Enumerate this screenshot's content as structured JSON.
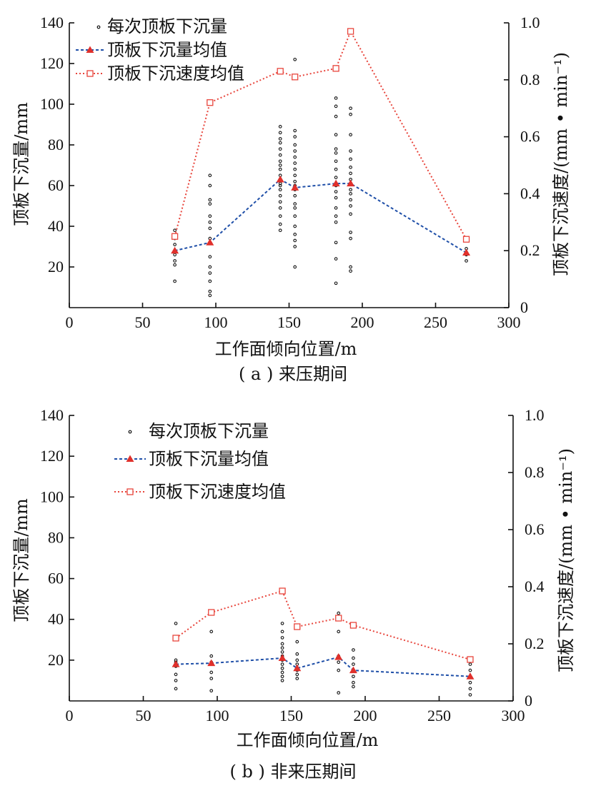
{
  "colors": {
    "axis": "#111111",
    "scatter": "#111111",
    "mean_line": "#1f4fa8",
    "mean_marker": "#e0302b",
    "speed_line": "#e8453c",
    "speed_marker": "#e8453c"
  },
  "legend": {
    "scatter": "每次顶板下沉量",
    "mean": "顶板下沉量均值",
    "speed": "顶板下沉速度均值"
  },
  "chart_data": [
    {
      "type": "scatter",
      "caption": "( a ) 来压期间",
      "xlabel": "工作面倾向位置/m",
      "ylabel": "顶板下沉量/mm",
      "ylabel2": "顶板下沉速度/(mm • min⁻¹)",
      "xlim": [
        0,
        300
      ],
      "xticks": [
        0,
        50,
        100,
        150,
        200,
        250,
        300
      ],
      "ylim": [
        0,
        140
      ],
      "yticks": [
        20,
        40,
        60,
        80,
        100,
        120,
        140
      ],
      "y2lim": [
        0,
        1.0
      ],
      "y2ticks": [
        0,
        0.2,
        0.4,
        0.6,
        0.8,
        1.0
      ],
      "y2tick_labels": [
        "0",
        "0.2",
        "0.4",
        "0.6",
        "0.8",
        "1.0"
      ],
      "legend_position": "top-left",
      "grid": false,
      "scatter_points": [
        {
          "x": 72,
          "y": [
            13,
            21,
            23,
            26,
            28,
            31,
            34,
            38
          ]
        },
        {
          "x": 96,
          "y": [
            6,
            8,
            13,
            17,
            20,
            25,
            32,
            34,
            39,
            42,
            45,
            51,
            53,
            60,
            65
          ]
        },
        {
          "x": 144,
          "y": [
            38,
            41,
            45,
            49,
            52,
            55,
            58,
            60,
            61,
            63,
            65,
            68,
            70,
            72,
            75,
            78,
            81,
            83,
            86,
            89
          ]
        },
        {
          "x": 154,
          "y": [
            20,
            30,
            33,
            36,
            40,
            45,
            49,
            51,
            55,
            58,
            60,
            62,
            65,
            68,
            71,
            74,
            77,
            80,
            84,
            87,
            122
          ]
        },
        {
          "x": 182,
          "y": [
            12,
            24,
            32,
            42,
            45,
            49,
            54,
            57,
            60,
            64,
            68,
            72,
            76,
            78,
            85,
            94,
            99,
            103
          ]
        },
        {
          "x": 192,
          "y": [
            18,
            20,
            34,
            37,
            46,
            50,
            53,
            56,
            58,
            61,
            63,
            66,
            69,
            73,
            77,
            85,
            95,
            98
          ]
        },
        {
          "x": 271,
          "y": [
            23,
            26,
            29
          ]
        }
      ],
      "series": [
        {
          "name": "顶板下沉量均值",
          "axis": "left",
          "x": [
            72,
            96,
            144,
            154,
            182,
            192,
            271
          ],
          "y": [
            28,
            32,
            63,
            59,
            61,
            61,
            27
          ]
        },
        {
          "name": "顶板下沉速度均值",
          "axis": "right",
          "x": [
            72,
            96,
            144,
            154,
            182,
            192,
            271
          ],
          "y": [
            0.25,
            0.72,
            0.83,
            0.81,
            0.84,
            0.97,
            0.24
          ]
        }
      ]
    },
    {
      "type": "scatter",
      "caption": "( b ) 非来压期间",
      "xlabel": "工作面倾向位置/m",
      "ylabel": "顶板下沉量/mm",
      "ylabel2": "顶板下沉速度/(mm • min⁻¹)",
      "xlim": [
        0,
        300
      ],
      "xticks": [
        0,
        50,
        100,
        150,
        200,
        250,
        300
      ],
      "ylim": [
        0,
        140
      ],
      "yticks": [
        20,
        40,
        60,
        80,
        100,
        120,
        140
      ],
      "y2lim": [
        0,
        1.0
      ],
      "y2ticks": [
        0,
        0.2,
        0.4,
        0.6,
        0.8,
        1.0
      ],
      "y2tick_labels": [
        "0",
        "0.2",
        "0.4",
        "0.6",
        "0.8",
        "1.0"
      ],
      "legend_position": "top-left",
      "grid": false,
      "scatter_points": [
        {
          "x": 72,
          "y": [
            6,
            10,
            13,
            17,
            19,
            20,
            38
          ]
        },
        {
          "x": 96,
          "y": [
            5,
            11,
            14,
            19,
            22,
            34
          ]
        },
        {
          "x": 144,
          "y": [
            10,
            12,
            14,
            16,
            18,
            20,
            22,
            24,
            26,
            28,
            31,
            34,
            38
          ]
        },
        {
          "x": 154,
          "y": [
            11,
            13,
            15,
            18,
            20,
            23,
            29
          ]
        },
        {
          "x": 182,
          "y": [
            4,
            15,
            19,
            22,
            34,
            40,
            43
          ]
        },
        {
          "x": 192,
          "y": [
            7,
            9,
            12,
            15,
            18,
            21,
            25
          ]
        },
        {
          "x": 271,
          "y": [
            3,
            6,
            9,
            12,
            15,
            18,
            21
          ]
        }
      ],
      "series": [
        {
          "name": "顶板下沉量均值",
          "axis": "left",
          "x": [
            72,
            96,
            144,
            154,
            182,
            192,
            271
          ],
          "y": [
            18,
            18.5,
            21,
            16,
            21.5,
            15,
            12
          ]
        },
        {
          "name": "顶板下沉速度均值",
          "axis": "right",
          "x": [
            72,
            96,
            144,
            154,
            182,
            192,
            271
          ],
          "y": [
            0.22,
            0.31,
            0.385,
            0.26,
            0.29,
            0.265,
            0.145
          ]
        }
      ]
    }
  ]
}
